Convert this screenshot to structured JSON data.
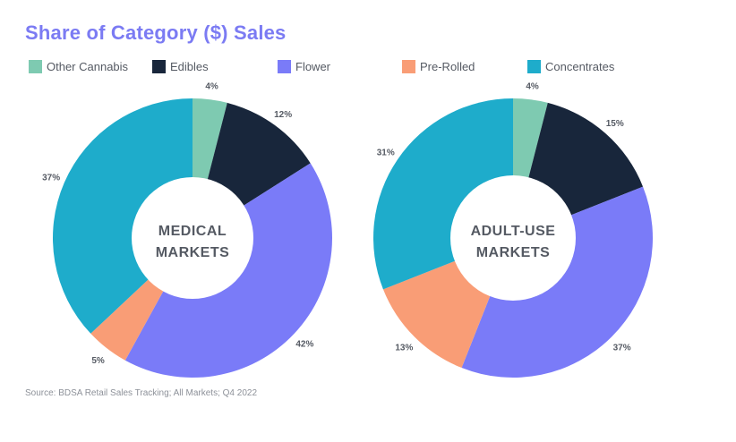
{
  "chart_data": {
    "type": "pie",
    "title": "Share of Category ($) Sales",
    "legend": {
      "placement": "top",
      "entries": [
        {
          "name": "Other Cannabis",
          "color": "#7ecab1"
        },
        {
          "name": "Edibles",
          "color": "#18263b"
        },
        {
          "name": "Flower",
          "color": "#7a7bf8"
        },
        {
          "name": "Pre-Rolled",
          "color": "#f99d76"
        },
        {
          "name": "Concentrates",
          "color": "#1eaccb"
        }
      ]
    },
    "charts": [
      {
        "name": "medical",
        "center_label": [
          "MEDICAL",
          "MARKETS"
        ],
        "categories": [
          "Other Cannabis",
          "Edibles",
          "Flower",
          "Pre-Rolled",
          "Concentrates"
        ],
        "values": [
          4,
          12,
          42,
          5,
          37
        ],
        "labels": [
          "4%",
          "12%",
          "42%",
          "5%",
          "37%"
        ]
      },
      {
        "name": "adult-use",
        "center_label": [
          "ADULT-USE",
          "MARKETS"
        ],
        "categories": [
          "Other Cannabis",
          "Edibles",
          "Flower",
          "Pre-Rolled",
          "Concentrates"
        ],
        "values": [
          4,
          15,
          37,
          13,
          31
        ],
        "labels": [
          "4%",
          "15%",
          "37%",
          "13%",
          "31%"
        ]
      }
    ],
    "source": "Source: BDSA Retail Sales Tracking; All Markets; Q4 2022"
  }
}
